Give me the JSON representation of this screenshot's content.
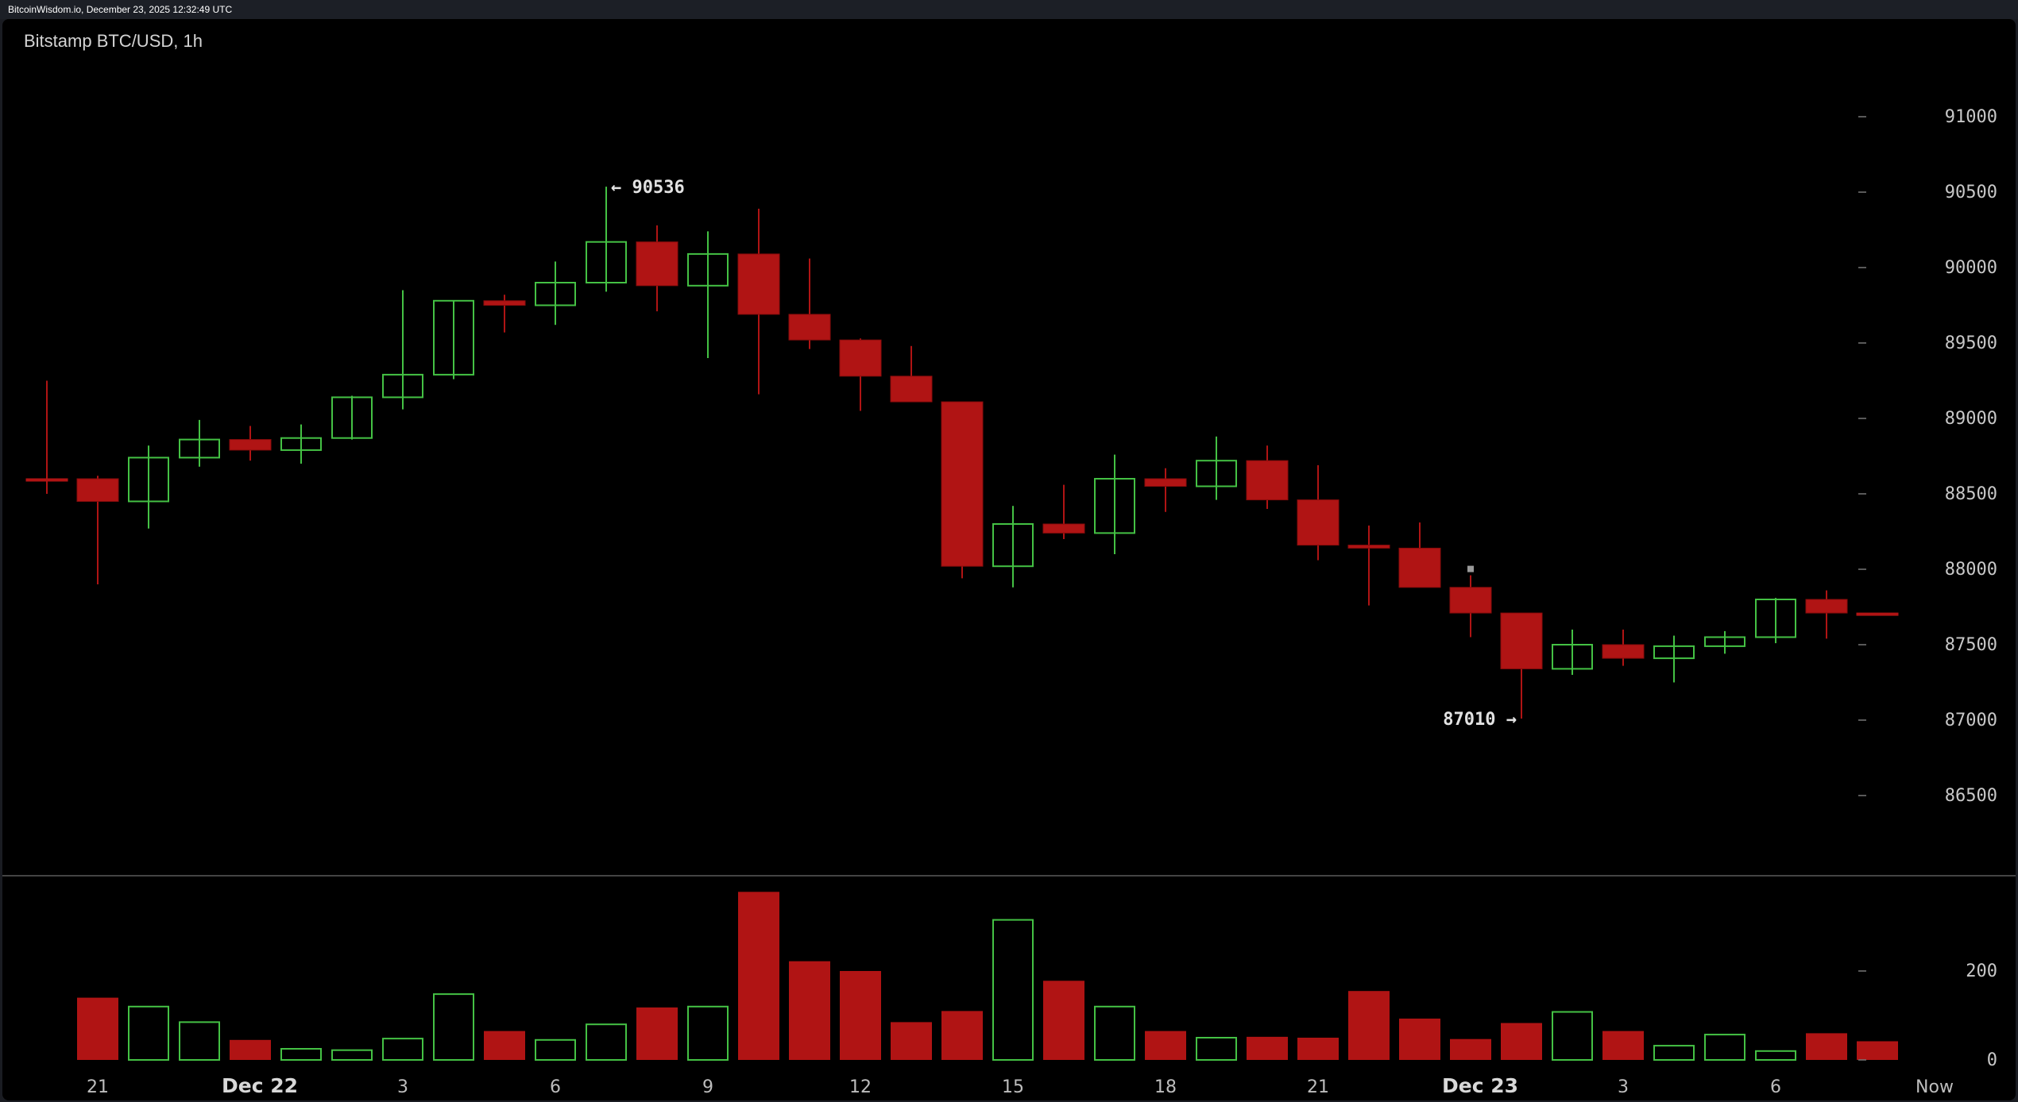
{
  "header": {
    "caption": "BitcoinWisdom.io, December 23, 2025 12:32:49 UTC"
  },
  "chart_data": {
    "type": "candlestick",
    "title": "Bitstamp BTC/USD, 1h",
    "price_axis": {
      "range": [
        86000,
        91500
      ],
      "ticks": [
        91000,
        90500,
        90000,
        89500,
        89000,
        88500,
        88000,
        87500,
        87000,
        86500
      ]
    },
    "volume_axis": {
      "range": [
        0,
        380
      ],
      "ticks": [
        200,
        0
      ]
    },
    "x_ticks": [
      {
        "index": 1,
        "label": "21",
        "bold": false
      },
      {
        "index": 4,
        "label": "Dec 22",
        "bold": true
      },
      {
        "index": 7,
        "label": "3",
        "bold": false
      },
      {
        "index": 10,
        "label": "6",
        "bold": false
      },
      {
        "index": 13,
        "label": "9",
        "bold": false
      },
      {
        "index": 16,
        "label": "12",
        "bold": false
      },
      {
        "index": 19,
        "label": "15",
        "bold": false
      },
      {
        "index": 22,
        "label": "18",
        "bold": false
      },
      {
        "index": 25,
        "label": "21",
        "bold": false
      },
      {
        "index": 28,
        "label": "Dec 23",
        "bold": true
      },
      {
        "index": 31,
        "label": "3",
        "bold": false
      },
      {
        "index": 34,
        "label": "6",
        "bold": false
      },
      {
        "index": 37,
        "label": "Now",
        "bold": false
      }
    ],
    "annotations": [
      {
        "text": "← 90536",
        "candle": 11,
        "price": 90536,
        "side": "right"
      },
      {
        "text": "87010 →",
        "candle": 29,
        "price": 87010,
        "side": "left"
      }
    ],
    "candles": [
      {
        "o": 88600,
        "h": 89250,
        "l": 88500,
        "c": 88600,
        "v": 0
      },
      {
        "o": 88600,
        "h": 88620,
        "l": 87900,
        "c": 88450,
        "v": 140
      },
      {
        "o": 88450,
        "h": 88820,
        "l": 88270,
        "c": 88740,
        "v": 120
      },
      {
        "o": 88740,
        "h": 88990,
        "l": 88680,
        "c": 88860,
        "v": 85
      },
      {
        "o": 88860,
        "h": 88950,
        "l": 88720,
        "c": 88790,
        "v": 45
      },
      {
        "o": 88790,
        "h": 88960,
        "l": 88700,
        "c": 88870,
        "v": 25
      },
      {
        "o": 88870,
        "h": 89150,
        "l": 88860,
        "c": 89140,
        "v": 22
      },
      {
        "o": 89140,
        "h": 89850,
        "l": 89060,
        "c": 89290,
        "v": 48
      },
      {
        "o": 89290,
        "h": 89780,
        "l": 89260,
        "c": 89780,
        "v": 148
      },
      {
        "o": 89780,
        "h": 89820,
        "l": 89570,
        "c": 89750,
        "v": 65
      },
      {
        "o": 89750,
        "h": 90040,
        "l": 89620,
        "c": 89900,
        "v": 45
      },
      {
        "o": 89900,
        "h": 90536,
        "l": 89840,
        "c": 90170,
        "v": 80
      },
      {
        "o": 90170,
        "h": 90280,
        "l": 89710,
        "c": 89880,
        "v": 118
      },
      {
        "o": 89880,
        "h": 90240,
        "l": 89400,
        "c": 90090,
        "v": 120
      },
      {
        "o": 90090,
        "h": 90390,
        "l": 89160,
        "c": 89690,
        "v": 378
      },
      {
        "o": 89690,
        "h": 90060,
        "l": 89460,
        "c": 89520,
        "v": 222
      },
      {
        "o": 89520,
        "h": 89530,
        "l": 89050,
        "c": 89280,
        "v": 200
      },
      {
        "o": 89280,
        "h": 89480,
        "l": 89110,
        "c": 89110,
        "v": 85
      },
      {
        "o": 89110,
        "h": 89110,
        "l": 87940,
        "c": 88020,
        "v": 110
      },
      {
        "o": 88020,
        "h": 88420,
        "l": 87880,
        "c": 88300,
        "v": 315
      },
      {
        "o": 88300,
        "h": 88560,
        "l": 88200,
        "c": 88240,
        "v": 178
      },
      {
        "o": 88240,
        "h": 88760,
        "l": 88100,
        "c": 88600,
        "v": 120
      },
      {
        "o": 88600,
        "h": 88670,
        "l": 88380,
        "c": 88550,
        "v": 65
      },
      {
        "o": 88550,
        "h": 88880,
        "l": 88460,
        "c": 88720,
        "v": 50
      },
      {
        "o": 88720,
        "h": 88820,
        "l": 88400,
        "c": 88460,
        "v": 52
      },
      {
        "o": 88460,
        "h": 88690,
        "l": 88060,
        "c": 88160,
        "v": 50
      },
      {
        "o": 88160,
        "h": 88290,
        "l": 87760,
        "c": 88140,
        "v": 155
      },
      {
        "o": 88140,
        "h": 88310,
        "l": 87880,
        "c": 87880,
        "v": 93
      },
      {
        "o": 87880,
        "h": 87960,
        "l": 87550,
        "c": 87710,
        "v": 47
      },
      {
        "o": 87710,
        "h": 87700,
        "l": 87010,
        "c": 87340,
        "v": 83
      },
      {
        "o": 87340,
        "h": 87600,
        "l": 87300,
        "c": 87500,
        "v": 108
      },
      {
        "o": 87500,
        "h": 87600,
        "l": 87360,
        "c": 87410,
        "v": 65
      },
      {
        "o": 87410,
        "h": 87560,
        "l": 87250,
        "c": 87490,
        "v": 32
      },
      {
        "o": 87490,
        "h": 87590,
        "l": 87440,
        "c": 87550,
        "v": 57
      },
      {
        "o": 87550,
        "h": 87810,
        "l": 87510,
        "c": 87800,
        "v": 20
      },
      {
        "o": 87800,
        "h": 87860,
        "l": 87540,
        "c": 87710,
        "v": 60
      },
      {
        "o": 87710,
        "h": 87710,
        "l": 87710,
        "c": 87710,
        "v": 42
      }
    ],
    "colors": {
      "up": "#44c144",
      "down": "#b01414",
      "background": "#000000",
      "text": "#c8c8c8",
      "separator": "#5a5a5a"
    },
    "grid": false
  }
}
